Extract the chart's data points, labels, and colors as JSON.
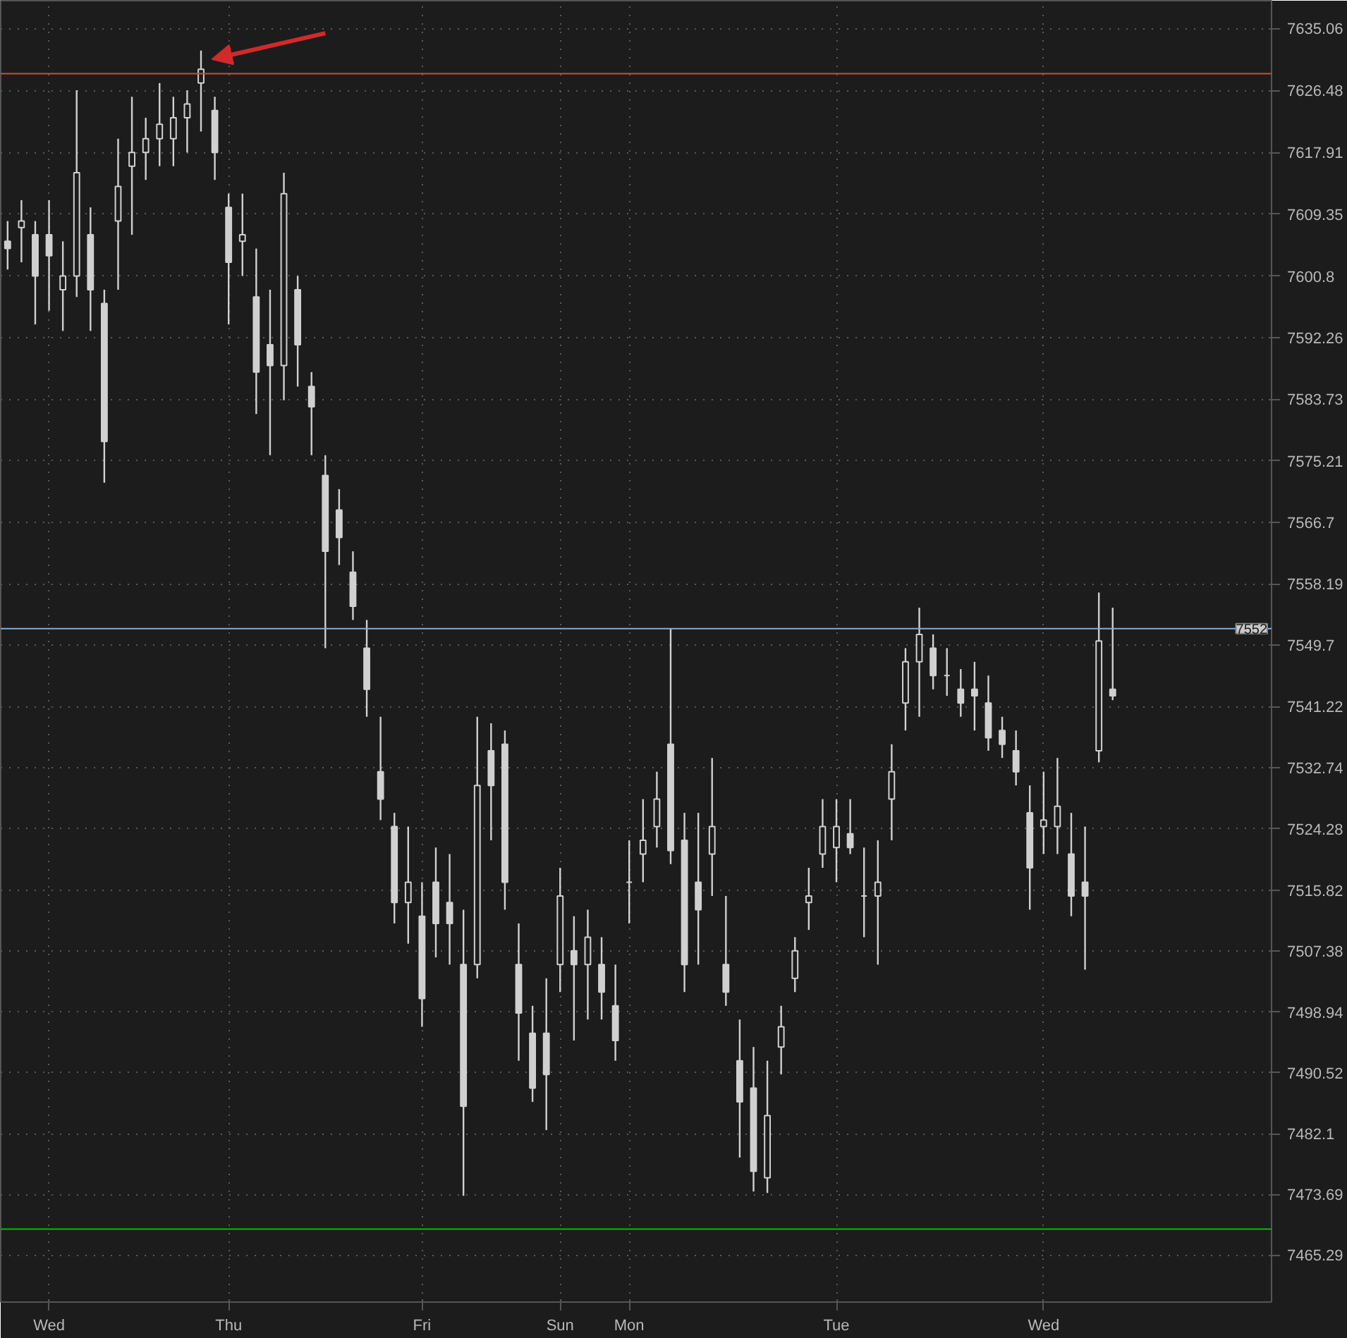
{
  "chart_data": {
    "type": "candlestick",
    "color": "#d0d0d0",
    "categories": [
      null,
      null,
      null,
      "Wed",
      null,
      null,
      null,
      null,
      null,
      null,
      null,
      null,
      null,
      null,
      null,
      null,
      "Thu",
      null,
      null,
      null,
      null,
      null,
      null,
      null,
      null,
      null,
      null,
      null,
      null,
      null,
      "Fri",
      null,
      null,
      null,
      null,
      null,
      null,
      null,
      null,
      null,
      "Sun",
      null,
      null,
      null,
      null,
      "Mon",
      null,
      null,
      null,
      null,
      null,
      null,
      null,
      null,
      null,
      null,
      null,
      null,
      null,
      null,
      "Tue",
      null,
      null,
      null,
      null,
      null,
      null,
      null,
      null,
      null,
      null,
      null,
      null,
      null,
      null,
      "Wed",
      null,
      null,
      null,
      null,
      null,
      null,
      null,
      null,
      null,
      null,
      null,
      null,
      null,
      null,
      null,
      null
    ],
    "ohlc": [
      [
        7605.6,
        7608.4,
        7601.7,
        7604.6
      ],
      [
        7607.5,
        7611.3,
        7602.7,
        7608.4
      ],
      [
        7606.5,
        7608.4,
        7594.1,
        7600.8
      ],
      [
        7606.5,
        7611.3,
        7596.0,
        7603.6
      ],
      [
        7598.9,
        7605.6,
        7593.2,
        7600.8
      ],
      [
        7600.8,
        7626.5,
        7597.9,
        7615.1
      ],
      [
        7606.5,
        7610.3,
        7593.2,
        7598.9
      ],
      [
        7597.0,
        7598.9,
        7572.2,
        7577.9
      ],
      [
        7608.4,
        7619.8,
        7598.9,
        7613.2
      ],
      [
        7616.0,
        7625.6,
        7606.5,
        7617.9
      ],
      [
        7617.9,
        7622.7,
        7614.1,
        7619.8
      ],
      [
        7619.8,
        7627.5,
        7616.0,
        7621.8
      ],
      [
        7619.8,
        7625.6,
        7616.0,
        7622.7
      ],
      [
        7622.7,
        7626.5,
        7617.9,
        7624.6
      ],
      [
        7627.5,
        7632.0,
        7620.8,
        7629.4
      ],
      [
        7623.7,
        7625.6,
        7614.1,
        7617.9
      ],
      [
        7610.3,
        7612.2,
        7594.1,
        7602.7
      ],
      [
        7605.6,
        7612.2,
        7600.8,
        7606.5
      ],
      [
        7597.9,
        7604.6,
        7581.7,
        7587.5
      ],
      [
        7591.3,
        7598.9,
        7576.0,
        7588.4
      ],
      [
        7588.4,
        7615.1,
        7583.6,
        7612.2
      ],
      [
        7598.9,
        7600.8,
        7585.5,
        7591.3
      ],
      [
        7585.5,
        7587.5,
        7576.0,
        7582.7
      ],
      [
        7573.2,
        7576.0,
        7549.3,
        7562.7
      ],
      [
        7568.4,
        7571.3,
        7560.8,
        7564.6
      ],
      [
        7559.8,
        7562.7,
        7553.2,
        7555.1
      ],
      [
        7549.3,
        7553.2,
        7539.8,
        7543.6
      ],
      [
        7532.2,
        7539.8,
        7525.5,
        7528.4
      ],
      [
        7524.6,
        7526.5,
        7511.2,
        7514.1
      ],
      [
        7514.1,
        7524.6,
        7508.4,
        7516.9
      ],
      [
        7512.2,
        7516.9,
        7496.9,
        7500.8
      ],
      [
        7516.9,
        7521.7,
        7506.5,
        7511.2
      ],
      [
        7514.1,
        7520.8,
        7505.5,
        7511.2
      ],
      [
        7505.5,
        7513.1,
        7473.5,
        7485.9
      ],
      [
        7505.5,
        7539.8,
        7503.6,
        7530.3
      ],
      [
        7535.1,
        7538.9,
        7522.7,
        7530.3
      ],
      [
        7536.0,
        7537.9,
        7513.1,
        7516.9
      ],
      [
        7505.5,
        7511.2,
        7492.2,
        7498.8
      ],
      [
        7496.0,
        7499.8,
        7486.5,
        7488.4
      ],
      [
        7496.0,
        7503.6,
        7482.6,
        7490.3
      ],
      [
        7505.5,
        7518.9,
        7501.7,
        7515.0
      ],
      [
        7507.4,
        7512.2,
        7495.0,
        7505.5
      ],
      [
        7505.5,
        7513.1,
        7497.9,
        7509.3
      ],
      [
        7505.5,
        7509.3,
        7497.9,
        7501.7
      ],
      [
        7499.8,
        7505.5,
        7492.2,
        7495.0
      ],
      [
        7516.9,
        7522.7,
        7511.2,
        7516.9
      ],
      [
        7520.8,
        7528.4,
        7516.9,
        7522.7
      ],
      [
        7524.6,
        7532.2,
        7521.7,
        7528.4
      ],
      [
        7536.0,
        7552.0,
        7519.4,
        7521.3
      ],
      [
        7522.7,
        7526.5,
        7501.7,
        7505.5
      ],
      [
        7516.9,
        7526.5,
        7505.5,
        7513.1
      ],
      [
        7520.8,
        7534.1,
        7515.0,
        7524.6
      ],
      [
        7505.5,
        7515.0,
        7499.8,
        7501.7
      ],
      [
        7492.2,
        7497.9,
        7478.8,
        7486.5
      ],
      [
        7488.4,
        7494.1,
        7474.1,
        7476.9
      ],
      [
        7476.0,
        7492.2,
        7473.9,
        7484.6
      ],
      [
        7494.1,
        7499.8,
        7490.3,
        7496.9
      ],
      [
        7503.6,
        7509.3,
        7501.7,
        7507.4
      ],
      [
        7514.1,
        7518.9,
        7510.3,
        7515.0
      ],
      [
        7520.8,
        7528.4,
        7518.9,
        7524.6
      ],
      [
        7521.7,
        7528.4,
        7516.9,
        7524.6
      ],
      [
        7523.6,
        7528.4,
        7520.8,
        7521.7
      ],
      [
        7515.0,
        7521.7,
        7509.3,
        7515.0
      ],
      [
        7515.0,
        7522.7,
        7505.5,
        7516.9
      ],
      [
        7528.4,
        7536.0,
        7522.7,
        7532.2
      ],
      [
        7541.7,
        7549.3,
        7537.9,
        7547.4
      ],
      [
        7547.4,
        7554.9,
        7539.8,
        7551.2
      ],
      [
        7549.3,
        7551.2,
        7543.6,
        7545.5
      ],
      [
        7545.5,
        7549.3,
        7542.7,
        7545.5
      ],
      [
        7543.6,
        7546.4,
        7539.8,
        7541.7
      ],
      [
        7543.6,
        7547.4,
        7537.9,
        7542.7
      ],
      [
        7541.7,
        7545.5,
        7535.1,
        7536.9
      ],
      [
        7537.9,
        7539.8,
        7534.1,
        7536.0
      ],
      [
        7535.1,
        7537.9,
        7530.3,
        7532.2
      ],
      [
        7526.5,
        7530.3,
        7513.1,
        7518.9
      ],
      [
        7524.6,
        7532.2,
        7520.8,
        7525.5
      ],
      [
        7524.6,
        7534.1,
        7520.8,
        7527.4
      ],
      [
        7520.8,
        7526.5,
        7512.2,
        7515.0
      ],
      [
        7516.9,
        7524.6,
        7504.8,
        7515.0
      ],
      [
        7535.1,
        7557.0,
        7533.5,
        7550.3
      ],
      [
        7543.6,
        7554.9,
        7542.1,
        7542.7
      ],
      null,
      null,
      null,
      null,
      null,
      null,
      null,
      null,
      null,
      null,
      null
    ],
    "ylim": [
      7458.8,
      7638.9
    ],
    "yticks": [
      7465.29,
      7473.69,
      7482.1,
      7490.52,
      7498.94,
      7507.38,
      7515.82,
      7524.28,
      7532.74,
      7541.22,
      7549.7,
      7558.19,
      7566.7,
      7575.21,
      7583.73,
      7592.26,
      7600.8,
      7609.35,
      7617.91,
      7626.48,
      7635.06
    ],
    "grid": true,
    "ref_lines": [
      {
        "axis": "y",
        "value": 7628.8,
        "label": null,
        "color": "#d04a40"
      },
      {
        "axis": "y",
        "value": 7552,
        "label": "7552",
        "color": "#7ab0e0"
      },
      {
        "axis": "y",
        "value": 7468.9,
        "label": null,
        "color": "#00c000"
      }
    ]
  }
}
